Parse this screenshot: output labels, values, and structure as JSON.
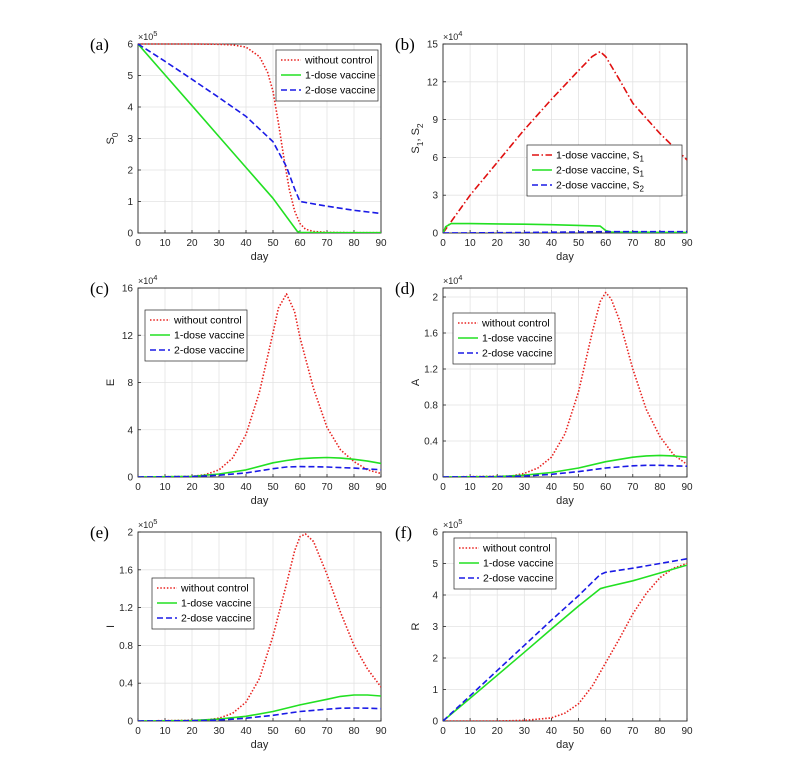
{
  "series_styles": {
    "without control": {
      "color": "#e8221f",
      "dash": "1.5,1.8"
    },
    "1-dose vaccine": {
      "color": "#22e022",
      "dash": ""
    },
    "2-dose vaccine": {
      "color": "#1a1ae6",
      "dash": "6,3"
    },
    "1-dose vaccine, S1": {
      "color": "#e01010",
      "dash": "7,2.5,1.5,2.5"
    },
    "2-dose vaccine, S1": {
      "color": "#22e022",
      "dash": ""
    },
    "2-dose vaccine, S2": {
      "color": "#1a1ae6",
      "dash": "6,3"
    }
  },
  "chart_data": [
    {
      "panel": "(a)",
      "type": "line",
      "xlabel": "day",
      "ylabel": "S",
      "ylabel_sub": "0",
      "exponent": "5",
      "xlim": [
        0,
        90
      ],
      "ylim": [
        0,
        6
      ],
      "xticks": [
        "0",
        "10",
        "20",
        "30",
        "40",
        "50",
        "60",
        "70",
        "80",
        "90"
      ],
      "yticks": [
        "0",
        "1",
        "2",
        "3",
        "4",
        "5",
        "6"
      ],
      "legend": "top-right",
      "series": [
        {
          "name": "without control",
          "label": "without control",
          "x": [
            0,
            10,
            20,
            30,
            35,
            40,
            45,
            48,
            50,
            52,
            54,
            56,
            58,
            60,
            62,
            65,
            70,
            80,
            90
          ],
          "y": [
            6,
            6,
            6,
            5.99,
            5.97,
            5.9,
            5.6,
            5.1,
            4.5,
            3.5,
            2.4,
            1.4,
            0.7,
            0.3,
            0.12,
            0.05,
            0.02,
            0.01,
            0.01
          ]
        },
        {
          "name": "1-dose vaccine",
          "label": "1-dose vaccine",
          "x": [
            0,
            10,
            20,
            30,
            40,
            50,
            59,
            60,
            70,
            80,
            90
          ],
          "y": [
            6,
            5.02,
            4.04,
            3.06,
            2.08,
            1.1,
            0.05,
            0.02,
            0.01,
            0.01,
            0.01
          ]
        },
        {
          "name": "2-dose vaccine",
          "label": "2-dose vaccine",
          "x": [
            0,
            10,
            20,
            30,
            40,
            50,
            55,
            58,
            60,
            70,
            80,
            90
          ],
          "y": [
            6,
            5.45,
            4.88,
            4.3,
            3.7,
            2.9,
            2.1,
            1.4,
            1.0,
            0.85,
            0.72,
            0.62
          ]
        }
      ]
    },
    {
      "panel": "(b)",
      "type": "line",
      "xlabel": "day",
      "ylabel": "S1, S2",
      "exponent": "4",
      "xlim": [
        0,
        90
      ],
      "ylim": [
        0,
        15
      ],
      "xticks": [
        "0",
        "10",
        "20",
        "30",
        "40",
        "50",
        "60",
        "70",
        "80",
        "90"
      ],
      "yticks": [
        "0",
        "3",
        "6",
        "9",
        "12",
        "15"
      ],
      "legend": "center-right",
      "series": [
        {
          "name": "1-dose vaccine, S1",
          "label": "1-dose vaccine, S",
          "label_sub": "1",
          "x": [
            0,
            10,
            20,
            30,
            40,
            50,
            55,
            58,
            60,
            65,
            70,
            80,
            90
          ],
          "y": [
            0,
            3.0,
            5.6,
            8.2,
            10.6,
            12.9,
            14.0,
            14.4,
            14.0,
            12.2,
            10.3,
            7.9,
            5.8
          ]
        },
        {
          "name": "2-dose vaccine, S1",
          "label": "2-dose vaccine, S",
          "label_sub": "1",
          "x": [
            0,
            1,
            3,
            10,
            20,
            30,
            40,
            50,
            58,
            60,
            62,
            70,
            80,
            90
          ],
          "y": [
            0,
            0.5,
            0.75,
            0.75,
            0.72,
            0.7,
            0.66,
            0.6,
            0.55,
            0.2,
            0.08,
            0.06,
            0.05,
            0.05
          ]
        },
        {
          "name": "2-dose vaccine, S2",
          "label": "2-dose vaccine, S",
          "label_sub": "2",
          "x": [
            0,
            10,
            20,
            30,
            40,
            50,
            58,
            60,
            70,
            80,
            90
          ],
          "y": [
            0,
            0.01,
            0.02,
            0.04,
            0.06,
            0.08,
            0.1,
            0.1,
            0.1,
            0.1,
            0.1
          ]
        }
      ]
    },
    {
      "panel": "(c)",
      "type": "line",
      "xlabel": "day",
      "ylabel": "E",
      "exponent": "4",
      "xlim": [
        0,
        90
      ],
      "ylim": [
        0,
        16
      ],
      "xticks": [
        "0",
        "10",
        "20",
        "30",
        "40",
        "50",
        "60",
        "70",
        "80",
        "90"
      ],
      "yticks": [
        "0",
        "4",
        "8",
        "12",
        "16"
      ],
      "legend": "top-left",
      "series": [
        {
          "name": "without control",
          "label": "without control",
          "x": [
            0,
            20,
            25,
            30,
            35,
            40,
            45,
            50,
            52,
            55,
            58,
            60,
            65,
            70,
            75,
            80,
            85,
            90
          ],
          "y": [
            0,
            0.05,
            0.2,
            0.6,
            1.6,
            3.6,
            7.2,
            12.2,
            14.3,
            15.5,
            14.0,
            11.8,
            7.5,
            4.2,
            2.3,
            1.3,
            0.6,
            0.3
          ]
        },
        {
          "name": "1-dose vaccine",
          "label": "1-dose vaccine",
          "x": [
            0,
            20,
            30,
            40,
            50,
            55,
            60,
            65,
            70,
            75,
            80,
            85,
            90
          ],
          "y": [
            0,
            0.05,
            0.25,
            0.6,
            1.2,
            1.4,
            1.55,
            1.62,
            1.65,
            1.6,
            1.5,
            1.35,
            1.15
          ]
        },
        {
          "name": "2-dose vaccine",
          "label": "2-dose vaccine",
          "x": [
            0,
            20,
            30,
            40,
            50,
            55,
            60,
            65,
            70,
            75,
            80,
            85,
            90
          ],
          "y": [
            0,
            0.03,
            0.15,
            0.35,
            0.7,
            0.85,
            0.88,
            0.87,
            0.85,
            0.8,
            0.75,
            0.68,
            0.62
          ]
        }
      ]
    },
    {
      "panel": "(d)",
      "type": "line",
      "xlabel": "day",
      "ylabel": "A",
      "exponent": "4",
      "xlim": [
        0,
        90
      ],
      "ylim": [
        0,
        2.1
      ],
      "xticks": [
        "0",
        "10",
        "20",
        "30",
        "40",
        "50",
        "60",
        "70",
        "80",
        "90"
      ],
      "yticks": [
        "0",
        "0.4",
        "0.8",
        "1.2",
        "1.6",
        "2"
      ],
      "legend": "top-left",
      "series": [
        {
          "name": "without control",
          "label": "without control",
          "x": [
            0,
            25,
            30,
            35,
            40,
            45,
            50,
            55,
            58,
            60,
            62,
            65,
            70,
            75,
            80,
            85,
            90
          ],
          "y": [
            0,
            0.01,
            0.04,
            0.1,
            0.22,
            0.48,
            0.95,
            1.6,
            1.95,
            2.05,
            1.98,
            1.75,
            1.2,
            0.75,
            0.45,
            0.25,
            0.14
          ]
        },
        {
          "name": "1-dose vaccine",
          "label": "1-dose vaccine",
          "x": [
            0,
            20,
            30,
            40,
            50,
            60,
            70,
            75,
            80,
            85,
            90
          ],
          "y": [
            0,
            0.005,
            0.02,
            0.05,
            0.1,
            0.17,
            0.22,
            0.235,
            0.24,
            0.235,
            0.22
          ]
        },
        {
          "name": "2-dose vaccine",
          "label": "2-dose vaccine",
          "x": [
            0,
            20,
            30,
            40,
            50,
            60,
            70,
            75,
            80,
            85,
            90
          ],
          "y": [
            0,
            0.003,
            0.01,
            0.03,
            0.06,
            0.1,
            0.125,
            0.13,
            0.13,
            0.125,
            0.12
          ]
        }
      ]
    },
    {
      "panel": "(e)",
      "type": "line",
      "xlabel": "day",
      "ylabel": "I",
      "exponent": "5",
      "xlim": [
        0,
        90
      ],
      "ylim": [
        0,
        2
      ],
      "xticks": [
        "0",
        "10",
        "20",
        "30",
        "40",
        "50",
        "60",
        "70",
        "80",
        "90"
      ],
      "yticks": [
        "0",
        "0.4",
        "0.8",
        "1.2",
        "1.6",
        "2"
      ],
      "legend": "center-left",
      "series": [
        {
          "name": "without control",
          "label": "without control",
          "x": [
            0,
            25,
            30,
            35,
            40,
            45,
            50,
            55,
            58,
            60,
            62,
            65,
            70,
            75,
            80,
            85,
            90
          ],
          "y": [
            0,
            0.01,
            0.03,
            0.08,
            0.2,
            0.45,
            0.9,
            1.45,
            1.8,
            1.95,
            1.98,
            1.9,
            1.55,
            1.15,
            0.8,
            0.55,
            0.36
          ]
        },
        {
          "name": "1-dose vaccine",
          "label": "1-dose vaccine",
          "x": [
            0,
            20,
            30,
            40,
            50,
            60,
            70,
            75,
            80,
            85,
            90
          ],
          "y": [
            0,
            0.005,
            0.02,
            0.05,
            0.1,
            0.17,
            0.23,
            0.26,
            0.275,
            0.275,
            0.265
          ]
        },
        {
          "name": "2-dose vaccine",
          "label": "2-dose vaccine",
          "x": [
            0,
            20,
            30,
            40,
            50,
            60,
            70,
            75,
            80,
            85,
            90
          ],
          "y": [
            0,
            0.003,
            0.01,
            0.03,
            0.06,
            0.1,
            0.125,
            0.135,
            0.138,
            0.135,
            0.13
          ]
        }
      ]
    },
    {
      "panel": "(f)",
      "type": "line",
      "xlabel": "day",
      "ylabel": "R",
      "exponent": "5",
      "xlim": [
        0,
        90
      ],
      "ylim": [
        0,
        6
      ],
      "xticks": [
        "0",
        "10",
        "20",
        "30",
        "40",
        "50",
        "60",
        "70",
        "80",
        "90"
      ],
      "yticks": [
        "0",
        "1",
        "2",
        "3",
        "4",
        "5",
        "6"
      ],
      "legend": "top-left",
      "series": [
        {
          "name": "without control",
          "label": "without control",
          "x": [
            0,
            20,
            30,
            40,
            45,
            50,
            55,
            60,
            65,
            70,
            75,
            80,
            85,
            90
          ],
          "y": [
            0,
            0.0,
            0.02,
            0.1,
            0.25,
            0.55,
            1.1,
            1.85,
            2.6,
            3.4,
            4.05,
            4.55,
            4.85,
            5.0
          ]
        },
        {
          "name": "1-dose vaccine",
          "label": "1-dose vaccine",
          "x": [
            0,
            10,
            20,
            30,
            40,
            50,
            58,
            60,
            70,
            80,
            90
          ],
          "y": [
            0,
            0.72,
            1.45,
            2.18,
            2.92,
            3.65,
            4.2,
            4.25,
            4.45,
            4.7,
            4.95
          ]
        },
        {
          "name": "2-dose vaccine",
          "label": "2-dose vaccine",
          "x": [
            0,
            10,
            20,
            30,
            40,
            50,
            58,
            60,
            70,
            80,
            90
          ],
          "y": [
            0,
            0.8,
            1.6,
            2.4,
            3.2,
            3.98,
            4.65,
            4.72,
            4.85,
            5.0,
            5.15
          ]
        }
      ]
    }
  ]
}
